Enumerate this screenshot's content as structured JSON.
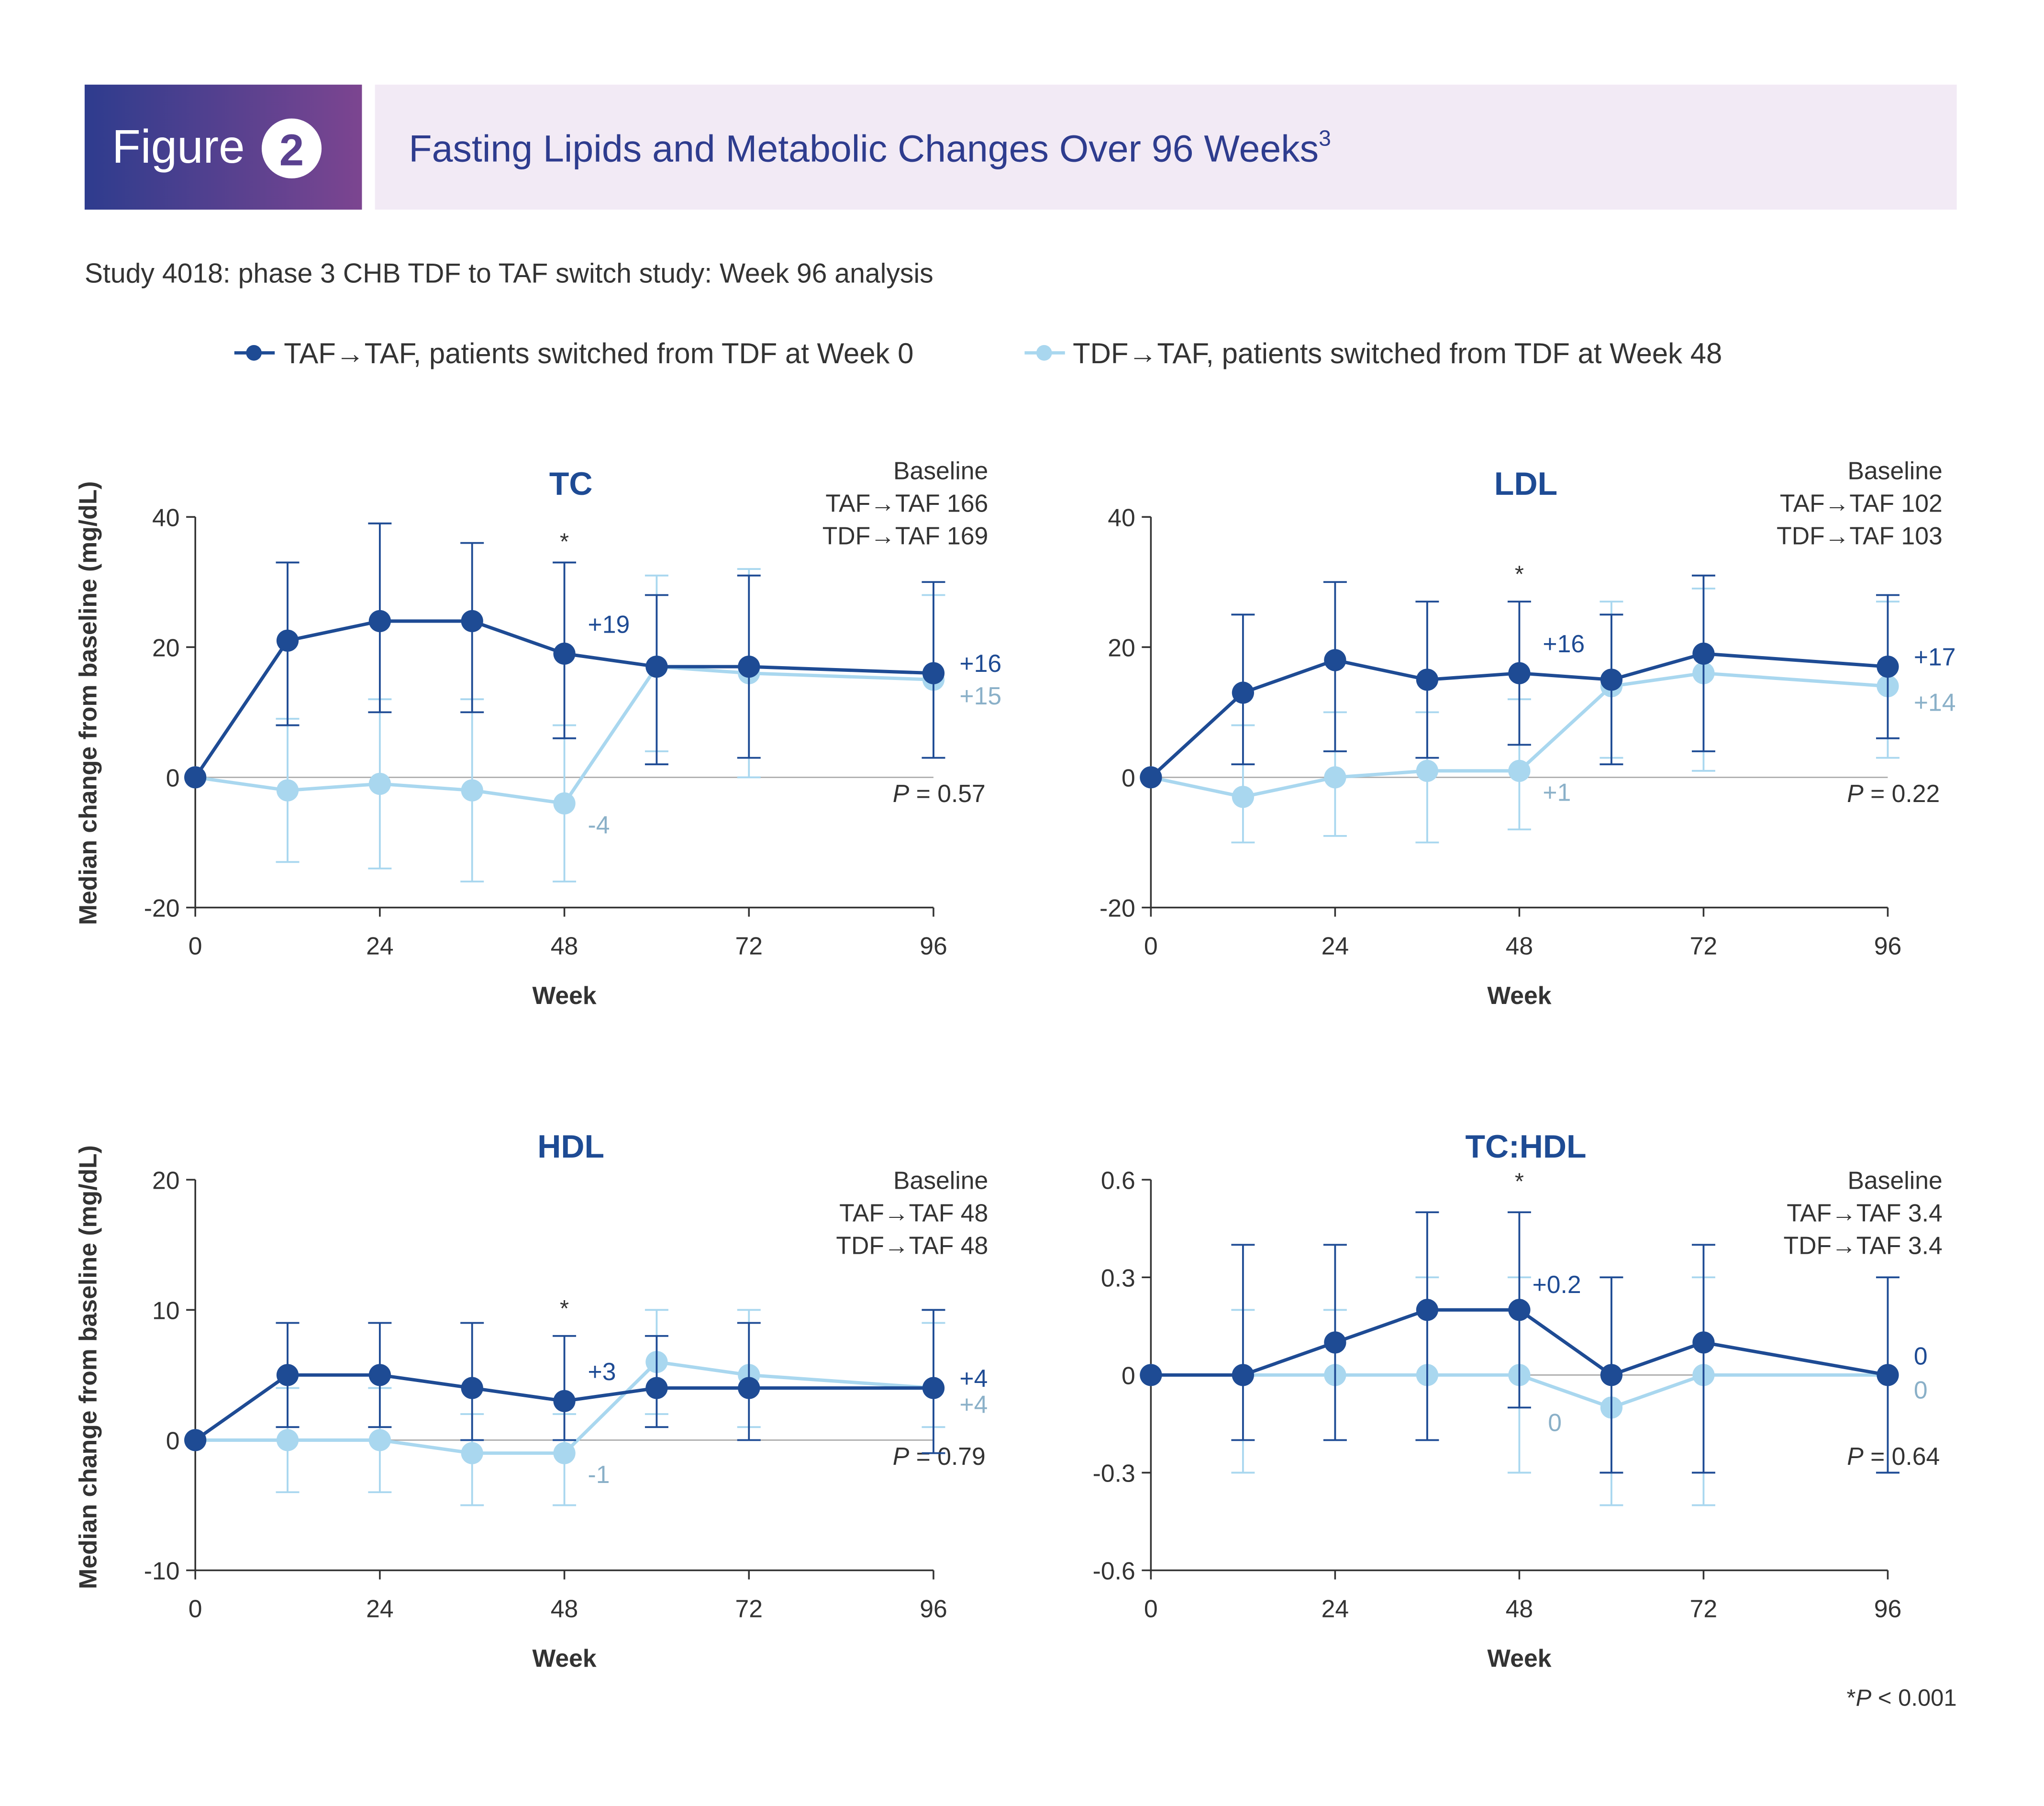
{
  "header": {
    "figure_word": "Figure",
    "figure_number": "2",
    "title": "Fasting Lipids and Metabolic Changes Over 96 Weeks",
    "title_sup": "3",
    "subtitle": "Study 4018: phase 3 CHB TDF to TAF switch study: Week 96 analysis"
  },
  "legend": [
    {
      "label": "TAF→TAF, patients switched from TDF at Week 0",
      "color": "#1e4b94"
    },
    {
      "label": "TDF→TAF, patients switched from TDF at Week 48",
      "color": "#a9d7ef"
    }
  ],
  "footnote": {
    "prefix": "*",
    "p": "P",
    "rest": " < 0.001"
  },
  "colors": {
    "dark": "#1e4b94",
    "light": "#a9d7ef",
    "light_label": "#8ab0c8",
    "header_grad_start": "#2e3c8e",
    "header_grad_end": "#7c4590",
    "header_band": "#f2eaf5",
    "title_text": "#2e3c8e"
  },
  "chart_data": [
    {
      "type": "line",
      "title": "TC",
      "xlabel": "Week",
      "ylabel": "Median change from baseline (mg/dL)",
      "x_ticks": [
        0,
        24,
        48,
        72,
        96
      ],
      "xlim": [
        0,
        96
      ],
      "ylim": [
        -20,
        40
      ],
      "y_ticks": [
        -20,
        0,
        20,
        40
      ],
      "y_tick_labels": [
        "-20",
        "0",
        "20",
        "40"
      ],
      "baseline": {
        "heading": "Baseline",
        "rows": [
          {
            "label": "TAF→TAF",
            "value": "166"
          },
          {
            "label": "TDF→TAF",
            "value": "169"
          }
        ]
      },
      "p_value": {
        "p": "P",
        "text": " = 0.57"
      },
      "star_week": 48,
      "star_value": 35,
      "series": [
        {
          "name": "TAF→TAF",
          "x": [
            0,
            12,
            24,
            36,
            48,
            60,
            72,
            96
          ],
          "y": [
            0,
            21,
            24,
            24,
            19,
            17,
            17,
            16
          ],
          "err_low": [
            0,
            8,
            10,
            10,
            6,
            2,
            3,
            3
          ],
          "err_high": [
            0,
            33,
            39,
            36,
            33,
            28,
            31,
            30
          ],
          "labels": [
            {
              "week": 48,
              "value": 19,
              "text": "+19"
            },
            {
              "week": 96,
              "value": 16,
              "text": "+16"
            }
          ]
        },
        {
          "name": "TDF→TAF",
          "x": [
            0,
            12,
            24,
            36,
            48,
            60,
            72,
            96
          ],
          "y": [
            0,
            -2,
            -1,
            -2,
            -4,
            17,
            16,
            15
          ],
          "err_low": [
            0,
            -13,
            -14,
            -16,
            -16,
            4,
            0,
            3
          ],
          "err_high": [
            0,
            9,
            12,
            12,
            8,
            31,
            32,
            28
          ],
          "labels": [
            {
              "week": 48,
              "value": -4,
              "text": "-4"
            },
            {
              "week": 96,
              "value": 15,
              "text": "+15"
            }
          ]
        }
      ]
    },
    {
      "type": "line",
      "title": "LDL",
      "xlabel": "Week",
      "ylabel": "",
      "x_ticks": [
        0,
        24,
        48,
        72,
        96
      ],
      "xlim": [
        0,
        96
      ],
      "ylim": [
        -20,
        40
      ],
      "y_ticks": [
        -20,
        0,
        20,
        40
      ],
      "y_tick_labels": [
        "-20",
        "0",
        "20",
        "40"
      ],
      "baseline": {
        "heading": "Baseline",
        "rows": [
          {
            "label": "TAF→TAF",
            "value": "102"
          },
          {
            "label": "TDF→TAF",
            "value": "103"
          }
        ]
      },
      "p_value": {
        "p": "P",
        "text": " = 0.22"
      },
      "star_week": 48,
      "star_value": 30,
      "series": [
        {
          "name": "TAF→TAF",
          "x": [
            0,
            12,
            24,
            36,
            48,
            60,
            72,
            96
          ],
          "y": [
            0,
            13,
            18,
            15,
            16,
            15,
            19,
            17
          ],
          "err_low": [
            0,
            2,
            4,
            3,
            5,
            2,
            4,
            6
          ],
          "err_high": [
            0,
            25,
            30,
            27,
            27,
            25,
            31,
            28
          ],
          "labels": [
            {
              "week": 48,
              "value": 16,
              "text": "+16"
            },
            {
              "week": 96,
              "value": 17,
              "text": "+17"
            }
          ]
        },
        {
          "name": "TDF→TAF",
          "x": [
            0,
            12,
            24,
            36,
            48,
            60,
            72,
            96
          ],
          "y": [
            0,
            -3,
            0,
            1,
            1,
            14,
            16,
            14
          ],
          "err_low": [
            0,
            -10,
            -9,
            -10,
            -8,
            3,
            1,
            3
          ],
          "err_high": [
            0,
            8,
            10,
            10,
            12,
            27,
            29,
            27
          ],
          "labels": [
            {
              "week": 48,
              "value": 1,
              "text": "+1"
            },
            {
              "week": 96,
              "value": 14,
              "text": "+14"
            }
          ]
        }
      ]
    },
    {
      "type": "line",
      "title": "HDL",
      "xlabel": "Week",
      "ylabel": "Median change from baseline (mg/dL)",
      "x_ticks": [
        0,
        24,
        48,
        72,
        96
      ],
      "xlim": [
        0,
        96
      ],
      "ylim": [
        -10,
        20
      ],
      "y_ticks": [
        -10,
        0,
        10,
        20
      ],
      "y_tick_labels": [
        "-10",
        "0",
        "10",
        "20"
      ],
      "baseline": {
        "heading": "Baseline",
        "rows": [
          {
            "label": "TAF→TAF",
            "value": "48"
          },
          {
            "label": "TDF→TAF",
            "value": "48"
          }
        ]
      },
      "p_value": {
        "p": "P",
        "text": " = 0.79"
      },
      "star_week": 48,
      "star_value": 9.5,
      "series": [
        {
          "name": "TAF→TAF",
          "x": [
            0,
            12,
            24,
            36,
            48,
            60,
            72,
            96
          ],
          "y": [
            0,
            5,
            5,
            4,
            3,
            4,
            4,
            4
          ],
          "err_low": [
            0,
            1,
            1,
            0,
            0,
            1,
            0,
            -1
          ],
          "err_high": [
            0,
            9,
            9,
            9,
            8,
            8,
            9,
            10
          ],
          "labels": [
            {
              "week": 48,
              "value": 3,
              "text": "+3"
            },
            {
              "week": 96,
              "value": 4,
              "text": "+4"
            }
          ]
        },
        {
          "name": "TDF→TAF",
          "x": [
            0,
            12,
            24,
            36,
            48,
            60,
            72,
            96
          ],
          "y": [
            0,
            0,
            0,
            -1,
            -1,
            6,
            5,
            4
          ],
          "err_low": [
            0,
            -4,
            -4,
            -5,
            -5,
            2,
            1,
            1
          ],
          "err_high": [
            0,
            4,
            4,
            2,
            2,
            10,
            10,
            9
          ],
          "labels": [
            {
              "week": 48,
              "value": -1,
              "text": "-1"
            },
            {
              "week": 96,
              "value": 4,
              "text": "+4"
            }
          ]
        }
      ]
    },
    {
      "type": "line",
      "title": "TC:HDL",
      "xlabel": "Week",
      "ylabel": "",
      "x_ticks": [
        0,
        24,
        48,
        72,
        96
      ],
      "xlim": [
        0,
        96
      ],
      "ylim": [
        -0.6,
        0.6
      ],
      "y_ticks": [
        -0.6,
        -0.3,
        0,
        0.3,
        0.6
      ],
      "y_tick_labels": [
        "-0.6",
        "-0.3",
        "0",
        "0.3",
        "0.6"
      ],
      "baseline": {
        "heading": "Baseline",
        "rows": [
          {
            "label": "TAF→TAF",
            "value": "3.4"
          },
          {
            "label": "TDF→TAF",
            "value": "3.4"
          }
        ]
      },
      "p_value": {
        "p": "P",
        "text": " = 0.64"
      },
      "star_week": 48,
      "star_value": 0.57,
      "series": [
        {
          "name": "TAF→TAF",
          "x": [
            0,
            12,
            24,
            36,
            48,
            60,
            72,
            96
          ],
          "y": [
            0,
            0,
            0.1,
            0.2,
            0.2,
            0,
            0.1,
            0
          ],
          "err_low": [
            0,
            -0.2,
            -0.2,
            -0.2,
            -0.1,
            -0.3,
            -0.3,
            -0.3
          ],
          "err_high": [
            0,
            0.4,
            0.4,
            0.5,
            0.5,
            0.3,
            0.4,
            0.3
          ],
          "labels": [
            {
              "week": 48,
              "value": 0.2,
              "text": "+0.2"
            },
            {
              "week": 96,
              "value": 0,
              "text": "0"
            }
          ]
        },
        {
          "name": "TDF→TAF",
          "x": [
            0,
            12,
            24,
            36,
            48,
            60,
            72,
            96
          ],
          "y": [
            0,
            0,
            0,
            0,
            0,
            -0.1,
            0,
            0
          ],
          "err_low": [
            0,
            -0.3,
            -0.2,
            -0.2,
            -0.3,
            -0.4,
            -0.4,
            -0.3
          ],
          "err_high": [
            0,
            0.2,
            0.2,
            0.3,
            0.3,
            0.3,
            0.3,
            0.3
          ],
          "labels": [
            {
              "week": 48,
              "value": 0,
              "text": "0"
            },
            {
              "week": 96,
              "value": 0,
              "text": "0"
            }
          ]
        }
      ]
    }
  ]
}
